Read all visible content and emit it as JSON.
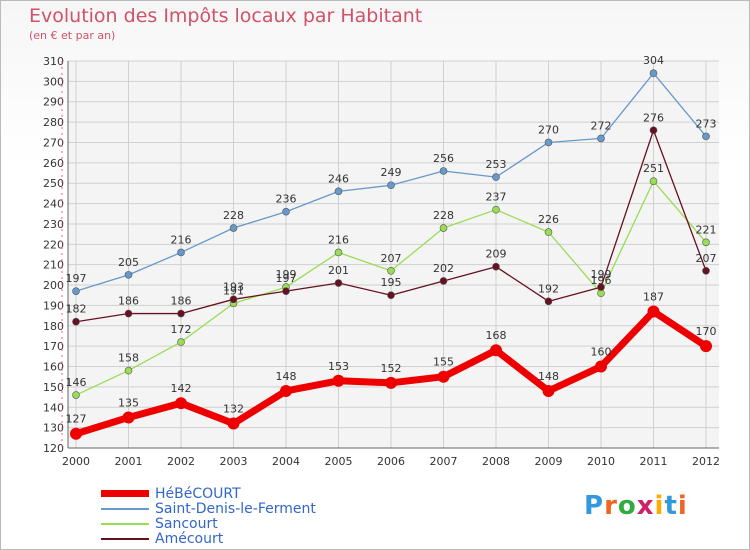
{
  "title": "Evolution des Impôts locaux par Habitant",
  "subtitle": "(en € et par an)",
  "logo": "Proxiti",
  "chart_data": {
    "type": "line",
    "title": "Evolution des Impôts locaux par Habitant",
    "ylabel": "(en € et par an)",
    "xlabel": "",
    "ylim": [
      120,
      310
    ],
    "yticks": [
      120,
      130,
      140,
      150,
      160,
      170,
      180,
      190,
      200,
      210,
      220,
      230,
      240,
      250,
      260,
      270,
      280,
      290,
      300,
      310
    ],
    "categories": [
      "2000",
      "2001",
      "2002",
      "2003",
      "2004",
      "2005",
      "2006",
      "2007",
      "2008",
      "2009",
      "2010",
      "2011",
      "2012"
    ],
    "grid": true,
    "series": [
      {
        "name": "HéBéCOURT",
        "color": "#ee0000",
        "values": [
          127,
          135,
          142,
          132,
          148,
          153,
          152,
          155,
          168,
          148,
          160,
          187,
          170
        ]
      },
      {
        "name": "Saint-Denis-le-Ferment",
        "color": "#6699cc",
        "values": [
          197,
          205,
          216,
          228,
          236,
          246,
          249,
          256,
          253,
          270,
          272,
          304,
          273
        ]
      },
      {
        "name": "Sancourt",
        "color": "#99dd55",
        "values": [
          146,
          158,
          172,
          191,
          199,
          216,
          207,
          228,
          237,
          226,
          196,
          251,
          221
        ]
      },
      {
        "name": "Amécourt",
        "color": "#661122",
        "values": [
          182,
          186,
          186,
          193,
          197,
          201,
          195,
          202,
          209,
          192,
          199,
          276,
          207
        ]
      }
    ]
  }
}
